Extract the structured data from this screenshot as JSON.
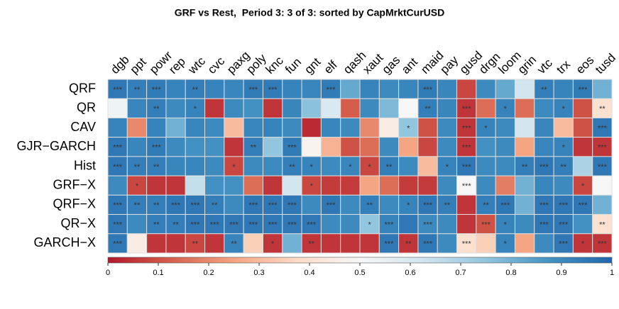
{
  "chart_data": {
    "type": "heatmap",
    "title": "GRF vs Rest,  Period 3: 3 of 3: sorted by CapMrktCurUSD",
    "columns": [
      "dgb",
      "ppt",
      "powr",
      "rep",
      "wtc",
      "cvc",
      "paxg",
      "poly",
      "knc",
      "fun",
      "gnt",
      "elf",
      "qash",
      "xaut",
      "gas",
      "ant",
      "maid",
      "pay",
      "gusd",
      "drgn",
      "loom",
      "grin",
      "vtc",
      "trx",
      "eos",
      "tusd"
    ],
    "rows": [
      "QRF",
      "QR",
      "CAV",
      "GJR−GARCH",
      "Hist",
      "GRF−X",
      "QRF−X",
      "QR−X",
      "GARCH−X"
    ],
    "values": [
      [
        0.95,
        0.93,
        0.94,
        0.92,
        0.93,
        0.92,
        0.91,
        0.94,
        0.94,
        0.92,
        0.91,
        0.94,
        0.82,
        0.92,
        0.9,
        0.91,
        0.94,
        0.91,
        0.08,
        0.9,
        0.82,
        0.62,
        0.93,
        0.92,
        0.94,
        0.8
      ],
      [
        0.53,
        0.91,
        0.93,
        0.9,
        0.92,
        0.05,
        0.9,
        0.88,
        0.05,
        0.91,
        0.76,
        0.6,
        0.12,
        0.9,
        0.78,
        0.5,
        0.93,
        0.91,
        0.05,
        0.15,
        0.92,
        0.15,
        0.9,
        0.92,
        0.1,
        0.4
      ],
      [
        0.92,
        0.2,
        0.92,
        0.8,
        0.91,
        0.9,
        0.3,
        0.91,
        0.92,
        0.9,
        0.03,
        0.91,
        0.9,
        0.2,
        0.45,
        0.75,
        0.1,
        0.9,
        0.05,
        0.92,
        0.9,
        0.62,
        0.91,
        0.3,
        0.1,
        0.95
      ],
      [
        0.95,
        0.91,
        0.94,
        0.9,
        0.88,
        0.88,
        0.05,
        0.93,
        0.75,
        0.94,
        0.48,
        0.28,
        0.1,
        0.15,
        0.9,
        0.25,
        0.08,
        0.9,
        0.05,
        0.88,
        0.9,
        0.25,
        0.91,
        0.92,
        0.05,
        0.05
      ],
      [
        0.95,
        0.93,
        0.93,
        0.91,
        0.91,
        0.9,
        0.08,
        0.9,
        0.9,
        0.93,
        0.92,
        0.9,
        0.91,
        0.08,
        0.93,
        0.9,
        0.3,
        0.92,
        0.95,
        0.9,
        0.9,
        0.93,
        0.95,
        0.93,
        0.7,
        0.95
      ],
      [
        0.9,
        0.08,
        0.05,
        0.05,
        0.65,
        0.88,
        0.88,
        0.15,
        0.05,
        0.62,
        0.08,
        0.06,
        0.06,
        0.25,
        0.15,
        0.06,
        0.06,
        0.9,
        0.5,
        0.9,
        0.18,
        0.8,
        0.91,
        0.9,
        0.08,
        0.5
      ],
      [
        0.95,
        0.93,
        0.93,
        0.95,
        0.95,
        0.93,
        0.9,
        0.95,
        0.95,
        0.95,
        0.9,
        0.95,
        0.9,
        0.93,
        0.9,
        0.92,
        0.95,
        0.93,
        0.05,
        0.93,
        0.95,
        0.8,
        0.95,
        0.95,
        0.95,
        0.8
      ],
      [
        0.95,
        0.9,
        0.93,
        0.93,
        0.95,
        0.95,
        0.95,
        0.95,
        0.95,
        0.95,
        0.95,
        0.9,
        0.9,
        0.75,
        0.92,
        0.95,
        0.9,
        0.9,
        0.05,
        0.1,
        0.92,
        0.9,
        0.95,
        0.95,
        0.88,
        0.4
      ],
      [
        0.95,
        0.45,
        0.05,
        0.05,
        0.08,
        0.05,
        0.92,
        0.35,
        0.05,
        0.8,
        0.05,
        0.05,
        0.05,
        0.05,
        0.95,
        0.05,
        0.95,
        0.9,
        0.4,
        0.35,
        0.92,
        0.25,
        0.9,
        0.95,
        0.05,
        0.05
      ]
    ],
    "annotations": [
      [
        "***",
        "**",
        "***",
        null,
        "**",
        null,
        null,
        "***",
        "***",
        null,
        null,
        "***",
        null,
        null,
        null,
        null,
        "***",
        null,
        null,
        null,
        null,
        null,
        "**",
        null,
        "***",
        null
      ],
      [
        null,
        null,
        "**",
        null,
        "*",
        null,
        null,
        null,
        null,
        null,
        null,
        null,
        null,
        null,
        null,
        null,
        "**",
        null,
        "***",
        null,
        "*",
        null,
        null,
        "*",
        null,
        "**"
      ],
      [
        null,
        null,
        null,
        null,
        null,
        null,
        null,
        null,
        null,
        null,
        null,
        null,
        null,
        null,
        null,
        "*",
        null,
        null,
        "***",
        "*",
        null,
        null,
        null,
        null,
        null,
        "***"
      ],
      [
        "***",
        null,
        "***",
        null,
        null,
        null,
        null,
        "**",
        null,
        "***",
        null,
        null,
        null,
        null,
        null,
        null,
        null,
        null,
        "***",
        null,
        null,
        null,
        null,
        "*",
        null,
        "***"
      ],
      [
        "***",
        "**",
        "**",
        null,
        null,
        null,
        "*",
        null,
        null,
        "**",
        "*",
        null,
        "*",
        "*",
        "**",
        null,
        null,
        "*",
        "***",
        null,
        null,
        "**",
        "***",
        "**",
        null,
        "***"
      ],
      [
        null,
        "*",
        null,
        null,
        null,
        null,
        null,
        null,
        null,
        null,
        "*",
        null,
        null,
        null,
        null,
        null,
        null,
        null,
        "***",
        null,
        null,
        null,
        null,
        null,
        "*",
        null
      ],
      [
        "***",
        "**",
        "**",
        "***",
        "***",
        "**",
        null,
        "***",
        "***",
        "***",
        null,
        "***",
        null,
        "**",
        null,
        "*",
        "***",
        "**",
        null,
        "**",
        "***",
        null,
        "***",
        "***",
        "***",
        null
      ],
      [
        "***",
        null,
        "**",
        "**",
        "***",
        "***",
        "***",
        "***",
        "***",
        "***",
        "***",
        null,
        null,
        "*",
        "***",
        null,
        "***",
        null,
        null,
        "***",
        "*",
        null,
        "***",
        "***",
        null,
        "**"
      ],
      [
        "***",
        null,
        null,
        null,
        "**",
        null,
        "**",
        null,
        "*",
        null,
        "**",
        null,
        null,
        null,
        "***",
        "**",
        "***",
        null,
        "***",
        null,
        "*",
        null,
        null,
        "***",
        "*",
        "***"
      ]
    ],
    "colorscale": [
      "#b2182b",
      "#d6604d",
      "#f4a582",
      "#fddbc7",
      "#f7f7f7",
      "#d1e5f0",
      "#92c5de",
      "#4393c3",
      "#2166ac"
    ],
    "clim": [
      0,
      1
    ],
    "cticks": [
      0,
      0.1,
      0.2,
      0.3,
      0.4,
      0.5,
      0.6,
      0.7,
      0.8,
      0.9,
      1
    ]
  }
}
